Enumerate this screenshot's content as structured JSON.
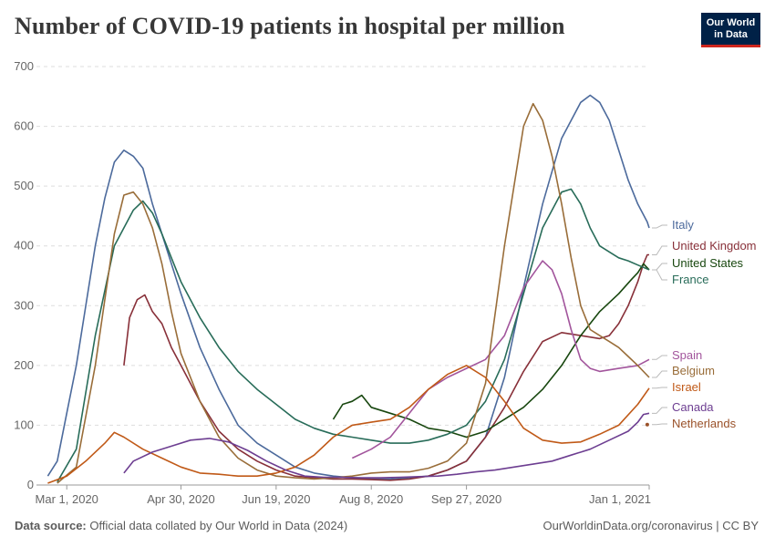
{
  "header": {
    "title": "Number of COVID-19 patients in hospital per million",
    "logo_line1": "Our World",
    "logo_line2": "in Data"
  },
  "footer": {
    "source_label": "Data source:",
    "source_text": "Official data collated by Our World in Data (2024)",
    "link_text": "OurWorldinData.org/coronavirus | CC BY"
  },
  "chart_data": {
    "type": "line",
    "title": "Number of COVID-19 patients in hospital per million",
    "xlabel": "",
    "ylabel": "",
    "ylim": [
      0,
      700
    ],
    "yticks": [
      0,
      100,
      200,
      300,
      400,
      500,
      600,
      700
    ],
    "x_tick_labels": [
      "Mar 1, 2020",
      "Apr 30, 2020",
      "Jun 19, 2020",
      "Aug 8, 2020",
      "Sep 27, 2020",
      "Jan 1, 2021"
    ],
    "x_tick_days": [
      0,
      60,
      110,
      160,
      210,
      306
    ],
    "x_range_days": [
      0,
      306
    ],
    "grid": true,
    "series": [
      {
        "name": "Italy",
        "color": "#4c6a9c",
        "points": [
          [
            -10,
            15
          ],
          [
            -5,
            40
          ],
          [
            0,
            120
          ],
          [
            5,
            200
          ],
          [
            10,
            300
          ],
          [
            15,
            400
          ],
          [
            20,
            480
          ],
          [
            25,
            540
          ],
          [
            30,
            560
          ],
          [
            35,
            550
          ],
          [
            40,
            530
          ],
          [
            45,
            470
          ],
          [
            50,
            420
          ],
          [
            55,
            370
          ],
          [
            60,
            320
          ],
          [
            70,
            230
          ],
          [
            80,
            160
          ],
          [
            90,
            100
          ],
          [
            100,
            70
          ],
          [
            110,
            50
          ],
          [
            120,
            30
          ],
          [
            130,
            20
          ],
          [
            140,
            15
          ],
          [
            150,
            12
          ],
          [
            160,
            10
          ],
          [
            170,
            10
          ],
          [
            180,
            12
          ],
          [
            190,
            15
          ],
          [
            200,
            25
          ],
          [
            210,
            40
          ],
          [
            220,
            80
          ],
          [
            230,
            180
          ],
          [
            240,
            330
          ],
          [
            250,
            470
          ],
          [
            260,
            580
          ],
          [
            270,
            640
          ],
          [
            275,
            652
          ],
          [
            280,
            640
          ],
          [
            285,
            610
          ],
          [
            290,
            560
          ],
          [
            295,
            510
          ],
          [
            300,
            470
          ],
          [
            305,
            440
          ],
          [
            306,
            430
          ]
        ]
      },
      {
        "name": "United Kingdom",
        "color": "#883039",
        "points": [
          [
            30,
            200
          ],
          [
            33,
            280
          ],
          [
            37,
            310
          ],
          [
            41,
            318
          ],
          [
            45,
            290
          ],
          [
            50,
            270
          ],
          [
            55,
            230
          ],
          [
            60,
            200
          ],
          [
            70,
            140
          ],
          [
            80,
            90
          ],
          [
            90,
            60
          ],
          [
            100,
            40
          ],
          [
            110,
            25
          ],
          [
            120,
            15
          ],
          [
            130,
            12
          ],
          [
            140,
            10
          ],
          [
            150,
            10
          ],
          [
            160,
            9
          ],
          [
            170,
            8
          ],
          [
            180,
            10
          ],
          [
            190,
            15
          ],
          [
            200,
            25
          ],
          [
            210,
            40
          ],
          [
            220,
            80
          ],
          [
            230,
            130
          ],
          [
            240,
            190
          ],
          [
            250,
            240
          ],
          [
            260,
            255
          ],
          [
            270,
            250
          ],
          [
            280,
            245
          ],
          [
            285,
            250
          ],
          [
            290,
            270
          ],
          [
            295,
            300
          ],
          [
            300,
            340
          ],
          [
            303,
            370
          ],
          [
            305,
            385
          ],
          [
            306,
            385
          ]
        ]
      },
      {
        "name": "United States",
        "color": "#18470f",
        "points": [
          [
            140,
            110
          ],
          [
            145,
            135
          ],
          [
            150,
            140
          ],
          [
            155,
            150
          ],
          [
            160,
            130
          ],
          [
            170,
            120
          ],
          [
            180,
            110
          ],
          [
            190,
            95
          ],
          [
            200,
            90
          ],
          [
            210,
            80
          ],
          [
            220,
            90
          ],
          [
            230,
            110
          ],
          [
            240,
            130
          ],
          [
            250,
            160
          ],
          [
            260,
            200
          ],
          [
            270,
            250
          ],
          [
            280,
            290
          ],
          [
            290,
            320
          ],
          [
            297,
            345
          ],
          [
            300,
            355
          ],
          [
            303,
            370
          ],
          [
            306,
            360
          ]
        ]
      },
      {
        "name": "France",
        "color": "#286c59",
        "points": [
          [
            -5,
            5
          ],
          [
            5,
            60
          ],
          [
            15,
            250
          ],
          [
            25,
            400
          ],
          [
            35,
            460
          ],
          [
            40,
            475
          ],
          [
            45,
            455
          ],
          [
            50,
            420
          ],
          [
            55,
            380
          ],
          [
            60,
            340
          ],
          [
            70,
            280
          ],
          [
            80,
            230
          ],
          [
            90,
            190
          ],
          [
            100,
            160
          ],
          [
            110,
            135
          ],
          [
            120,
            110
          ],
          [
            130,
            95
          ],
          [
            140,
            85
          ],
          [
            150,
            80
          ],
          [
            160,
            75
          ],
          [
            170,
            70
          ],
          [
            180,
            70
          ],
          [
            190,
            75
          ],
          [
            200,
            85
          ],
          [
            210,
            100
          ],
          [
            220,
            140
          ],
          [
            230,
            210
          ],
          [
            240,
            320
          ],
          [
            250,
            430
          ],
          [
            260,
            490
          ],
          [
            265,
            495
          ],
          [
            270,
            470
          ],
          [
            275,
            430
          ],
          [
            280,
            400
          ],
          [
            285,
            390
          ],
          [
            290,
            380
          ],
          [
            295,
            375
          ],
          [
            300,
            368
          ],
          [
            306,
            360
          ]
        ]
      },
      {
        "name": "Spain",
        "color": "#a2559c",
        "points": [
          [
            150,
            45
          ],
          [
            160,
            60
          ],
          [
            170,
            80
          ],
          [
            180,
            120
          ],
          [
            190,
            160
          ],
          [
            200,
            180
          ],
          [
            210,
            195
          ],
          [
            220,
            210
          ],
          [
            230,
            250
          ],
          [
            240,
            330
          ],
          [
            250,
            375
          ],
          [
            255,
            360
          ],
          [
            260,
            320
          ],
          [
            265,
            260
          ],
          [
            270,
            210
          ],
          [
            275,
            195
          ],
          [
            280,
            190
          ],
          [
            290,
            195
          ],
          [
            300,
            200
          ],
          [
            306,
            210
          ]
        ]
      },
      {
        "name": "Belgium",
        "color": "#996d39",
        "points": [
          [
            -5,
            3
          ],
          [
            5,
            30
          ],
          [
            15,
            200
          ],
          [
            25,
            420
          ],
          [
            30,
            485
          ],
          [
            35,
            490
          ],
          [
            40,
            470
          ],
          [
            45,
            430
          ],
          [
            50,
            370
          ],
          [
            55,
            290
          ],
          [
            60,
            220
          ],
          [
            70,
            140
          ],
          [
            80,
            80
          ],
          [
            90,
            45
          ],
          [
            100,
            25
          ],
          [
            110,
            15
          ],
          [
            120,
            12
          ],
          [
            130,
            10
          ],
          [
            140,
            12
          ],
          [
            150,
            15
          ],
          [
            160,
            20
          ],
          [
            170,
            22
          ],
          [
            180,
            22
          ],
          [
            190,
            28
          ],
          [
            200,
            40
          ],
          [
            210,
            70
          ],
          [
            220,
            170
          ],
          [
            230,
            400
          ],
          [
            240,
            600
          ],
          [
            245,
            638
          ],
          [
            250,
            610
          ],
          [
            255,
            550
          ],
          [
            260,
            470
          ],
          [
            265,
            380
          ],
          [
            270,
            300
          ],
          [
            275,
            260
          ],
          [
            280,
            250
          ],
          [
            285,
            240
          ],
          [
            290,
            230
          ],
          [
            295,
            215
          ],
          [
            300,
            200
          ],
          [
            306,
            180
          ]
        ]
      },
      {
        "name": "Israel",
        "color": "#c05917",
        "points": [
          [
            -10,
            3
          ],
          [
            0,
            15
          ],
          [
            10,
            40
          ],
          [
            20,
            70
          ],
          [
            25,
            88
          ],
          [
            30,
            80
          ],
          [
            40,
            60
          ],
          [
            50,
            45
          ],
          [
            60,
            30
          ],
          [
            70,
            20
          ],
          [
            80,
            18
          ],
          [
            90,
            15
          ],
          [
            100,
            15
          ],
          [
            110,
            20
          ],
          [
            120,
            30
          ],
          [
            130,
            50
          ],
          [
            140,
            80
          ],
          [
            150,
            100
          ],
          [
            160,
            105
          ],
          [
            170,
            110
          ],
          [
            180,
            130
          ],
          [
            190,
            160
          ],
          [
            200,
            185
          ],
          [
            210,
            200
          ],
          [
            220,
            180
          ],
          [
            230,
            140
          ],
          [
            240,
            95
          ],
          [
            250,
            75
          ],
          [
            260,
            70
          ],
          [
            270,
            72
          ],
          [
            280,
            85
          ],
          [
            290,
            100
          ],
          [
            300,
            135
          ],
          [
            306,
            162
          ]
        ]
      },
      {
        "name": "Canada",
        "color": "#6d3e91",
        "points": [
          [
            30,
            20
          ],
          [
            35,
            40
          ],
          [
            45,
            55
          ],
          [
            55,
            65
          ],
          [
            65,
            75
          ],
          [
            75,
            78
          ],
          [
            85,
            72
          ],
          [
            95,
            58
          ],
          [
            105,
            40
          ],
          [
            115,
            25
          ],
          [
            125,
            15
          ],
          [
            135,
            13
          ],
          [
            145,
            13
          ],
          [
            155,
            12
          ],
          [
            165,
            12
          ],
          [
            175,
            13
          ],
          [
            185,
            14
          ],
          [
            195,
            15
          ],
          [
            205,
            18
          ],
          [
            215,
            22
          ],
          [
            225,
            25
          ],
          [
            235,
            30
          ],
          [
            245,
            35
          ],
          [
            255,
            40
          ],
          [
            265,
            50
          ],
          [
            275,
            60
          ],
          [
            285,
            75
          ],
          [
            295,
            90
          ],
          [
            300,
            105
          ],
          [
            303,
            118
          ],
          [
            306,
            120
          ]
        ]
      },
      {
        "name": "Netherlands",
        "color": "#9a5129",
        "points": [
          [
            305,
            101
          ],
          [
            306,
            101
          ]
        ]
      }
    ]
  }
}
